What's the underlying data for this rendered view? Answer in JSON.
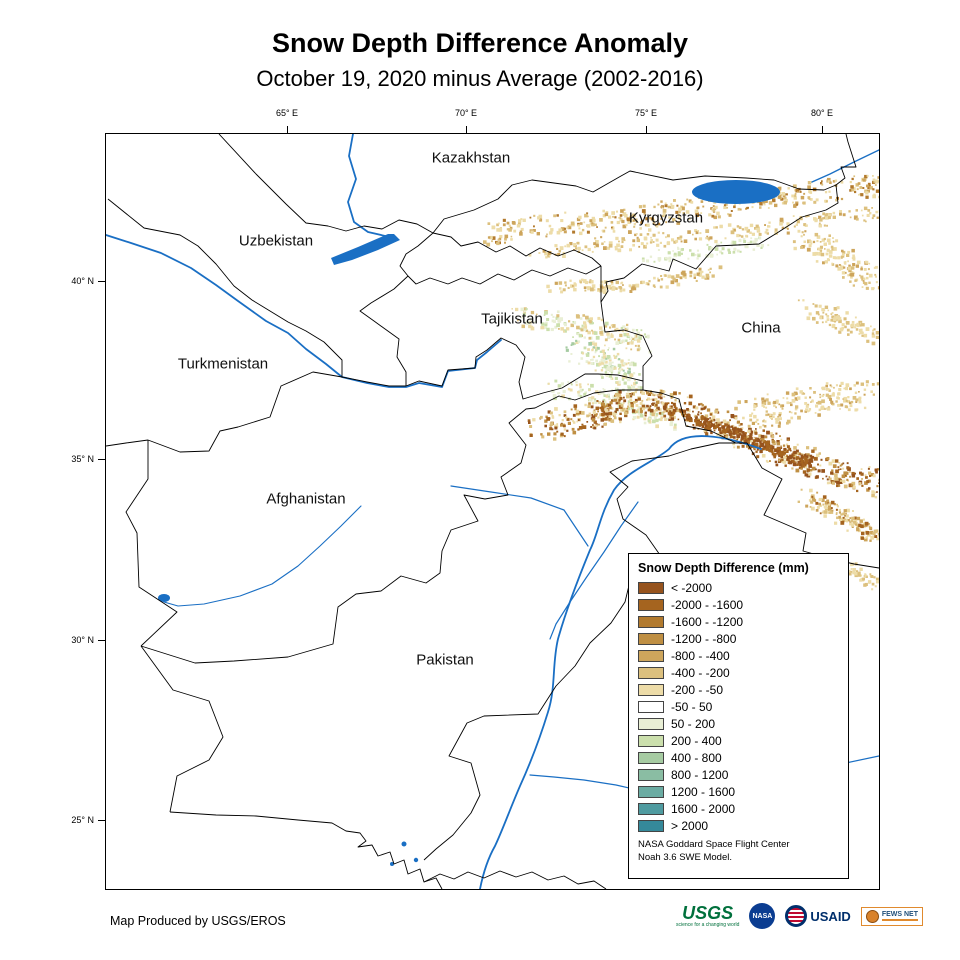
{
  "header": {
    "title": "Snow Depth Difference Anomaly",
    "subtitle": "October 19, 2020 minus Average (2002-2016)"
  },
  "map": {
    "x_ticks": [
      "65° E",
      "70° E",
      "75° E",
      "80° E"
    ],
    "y_ticks": [
      "40° N",
      "35° N",
      "30° N",
      "25° N"
    ],
    "countries": [
      "Kazakhstan",
      "Kyrgyzstan",
      "Uzbekistan",
      "Tajikistan",
      "China",
      "Turkmenistan",
      "Afghanistan",
      "Pakistan"
    ],
    "river_color": "#1A6FC4",
    "border_color": "#000000"
  },
  "legend": {
    "title": "Snow Depth Difference (mm)",
    "items": [
      {
        "label": "< -2000",
        "color": "#96531D"
      },
      {
        "label": "-2000 - -1600",
        "color": "#A5641F"
      },
      {
        "label": "-1600 - -1200",
        "color": "#B27A2E"
      },
      {
        "label": "-1200 - -800",
        "color": "#BF8F43"
      },
      {
        "label": "-800 - -400",
        "color": "#CDA55C"
      },
      {
        "label": "-400 - -200",
        "color": "#DCC07E"
      },
      {
        "label": "-200 - -50",
        "color": "#EDDCA8"
      },
      {
        "label": "-50 - 50",
        "color": "#FFFFFF"
      },
      {
        "label": "50 - 200",
        "color": "#E9EFD5"
      },
      {
        "label": "200 - 400",
        "color": "#CBDFAC"
      },
      {
        "label": "400 - 800",
        "color": "#A6CBA2"
      },
      {
        "label": "800 - 1200",
        "color": "#8ABDA3"
      },
      {
        "label": "1200 - 1600",
        "color": "#6BACA3"
      },
      {
        "label": "1600 - 2000",
        "color": "#4F9BA0"
      },
      {
        "label": "> 2000",
        "color": "#35899A"
      }
    ],
    "note_line1": "NASA Goddard Space Flight Center",
    "note_line2": "Noah 3.6 SWE  Model.",
    "swatch_border": "#444444"
  },
  "footer": {
    "credit": "Map Produced by USGS/EROS",
    "logos": {
      "usgs": "USGS",
      "usgs_tagline": "science for a changing world",
      "nasa": "NASA",
      "usaid": "USAID",
      "fewsnet": "FEWS NET"
    }
  }
}
